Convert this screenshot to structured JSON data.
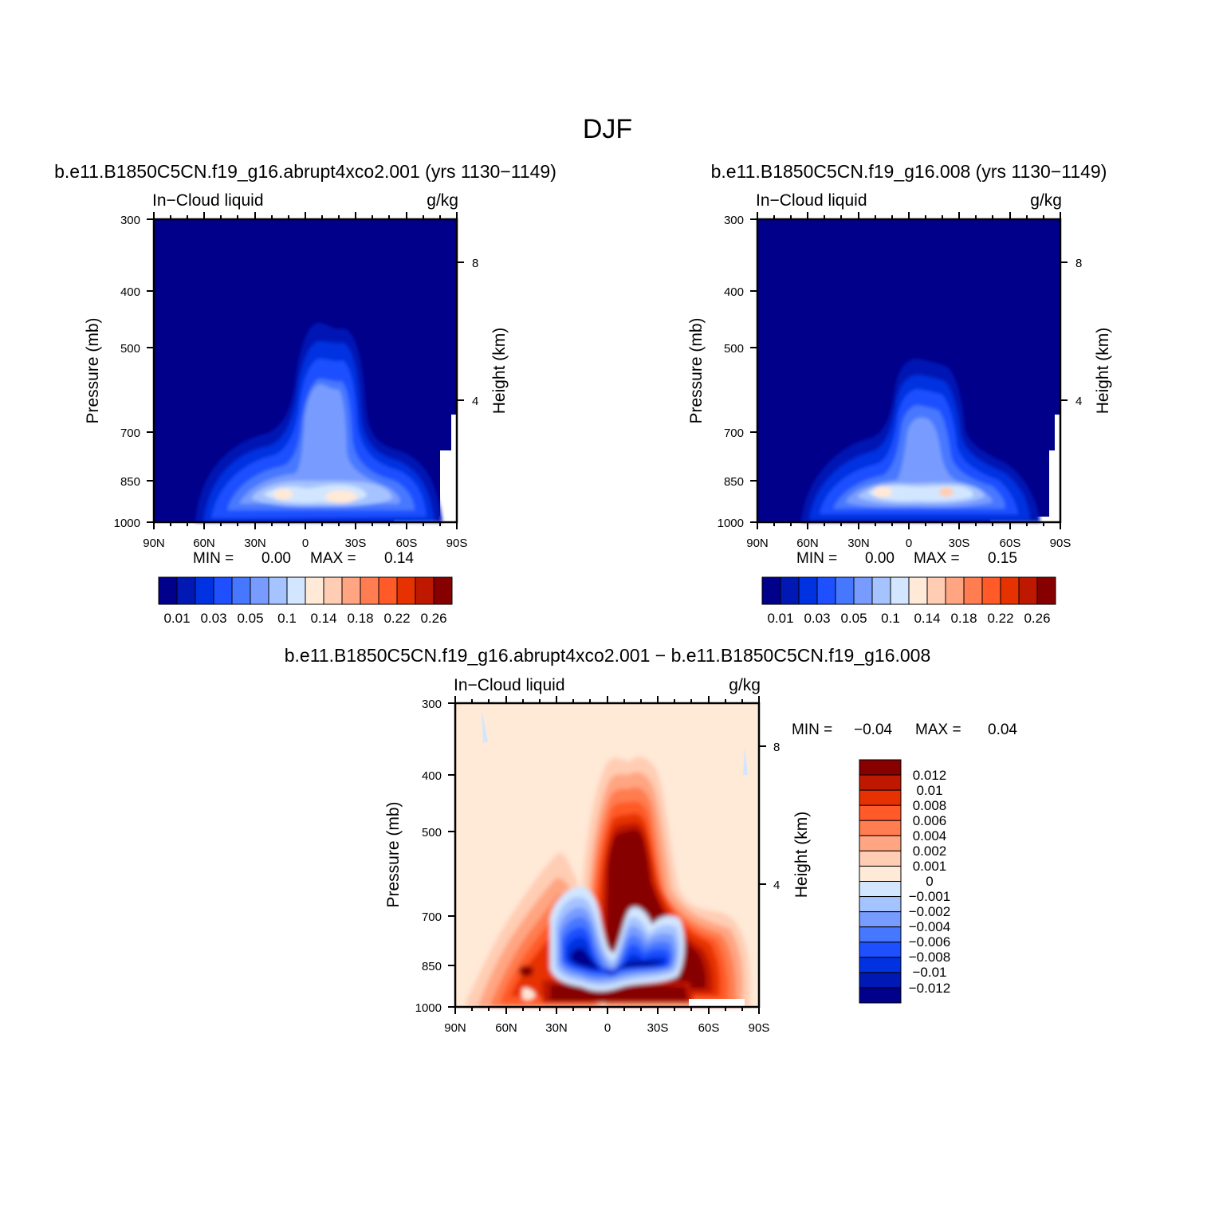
{
  "figure": {
    "supertitle": "DJF"
  },
  "chart_data": [
    {
      "type": "heatmap",
      "title": "b.e11.B1850C5CN.f19_g16.abrupt4xco2.001 (yrs 1130−1149)",
      "left_label": "In−Cloud liquid",
      "right_label": "g/kg",
      "ylabel": "Pressure (mb)",
      "ylabel_right": "Height (km)",
      "x_ticks": [
        "90N",
        "60N",
        "30N",
        "0",
        "30S",
        "60S",
        "90S"
      ],
      "y_ticks": [
        300,
        400,
        500,
        700,
        850,
        1000
      ],
      "right_ticks": [
        8,
        4
      ],
      "ylim": [
        1000,
        300
      ],
      "min_text": "MIN =",
      "min_value": "0.00",
      "max_text": "MAX =",
      "max_value": "0.14",
      "colorbar": {
        "orientation": "horizontal",
        "labels": [
          "0.01",
          "0.03",
          "0.05",
          "0.1",
          "0.14",
          "0.18",
          "0.22",
          "0.26"
        ],
        "colors": [
          "#00008b",
          "#0019b4",
          "#0032e1",
          "#1e50ff",
          "#4678ff",
          "#789bff",
          "#a5c3ff",
          "#d2e6ff",
          "#ffe9d7",
          "#ffcdb4",
          "#ffa582",
          "#ff7d50",
          "#ff5a28",
          "#e63200",
          "#be1900",
          "#870000"
        ]
      }
    },
    {
      "type": "heatmap",
      "title": "b.e11.B1850C5CN.f19_g16.008 (yrs 1130−1149)",
      "left_label": "In−Cloud liquid",
      "right_label": "g/kg",
      "ylabel": "Pressure (mb)",
      "ylabel_right": "Height (km)",
      "x_ticks": [
        "90N",
        "60N",
        "30N",
        "0",
        "30S",
        "60S",
        "90S"
      ],
      "y_ticks": [
        300,
        400,
        500,
        700,
        850,
        1000
      ],
      "right_ticks": [
        8,
        4
      ],
      "ylim": [
        1000,
        300
      ],
      "min_text": "MIN =",
      "min_value": "0.00",
      "max_text": "MAX =",
      "max_value": "0.15",
      "colorbar": {
        "orientation": "horizontal",
        "labels": [
          "0.01",
          "0.03",
          "0.05",
          "0.1",
          "0.14",
          "0.18",
          "0.22",
          "0.26"
        ],
        "colors": [
          "#00008b",
          "#0019b4",
          "#0032e1",
          "#1e50ff",
          "#4678ff",
          "#789bff",
          "#a5c3ff",
          "#d2e6ff",
          "#ffe9d7",
          "#ffcdb4",
          "#ffa582",
          "#ff7d50",
          "#ff5a28",
          "#e63200",
          "#be1900",
          "#870000"
        ]
      }
    },
    {
      "type": "heatmap",
      "title": "b.e11.B1850C5CN.f19_g16.abrupt4xco2.001 − b.e11.B1850C5CN.f19_g16.008",
      "left_label": "In−Cloud liquid",
      "right_label": "g/kg",
      "ylabel": "Pressure (mb)",
      "ylabel_right": "Height (km)",
      "x_ticks": [
        "90N",
        "60N",
        "30N",
        "0",
        "30S",
        "60S",
        "90S"
      ],
      "y_ticks": [
        300,
        400,
        500,
        700,
        850,
        1000
      ],
      "right_ticks": [
        8,
        4
      ],
      "ylim": [
        1000,
        300
      ],
      "min_text": "MIN =",
      "min_value": "−0.04",
      "max_text": "MAX =",
      "max_value": "0.04",
      "colorbar": {
        "orientation": "vertical",
        "labels": [
          "0.012",
          "0.01",
          "0.008",
          "0.006",
          "0.004",
          "0.002",
          "0.001",
          "0",
          "−0.001",
          "−0.002",
          "−0.004",
          "−0.006",
          "−0.008",
          "−0.01",
          "−0.012"
        ],
        "colors": [
          "#870000",
          "#be1900",
          "#e63200",
          "#ff5a28",
          "#ff7d50",
          "#ffa582",
          "#ffcdb4",
          "#ffe9d7",
          "#d2e6ff",
          "#a5c3ff",
          "#789bff",
          "#4678ff",
          "#1e50ff",
          "#0032e1",
          "#0019b4",
          "#00008b"
        ]
      }
    }
  ]
}
